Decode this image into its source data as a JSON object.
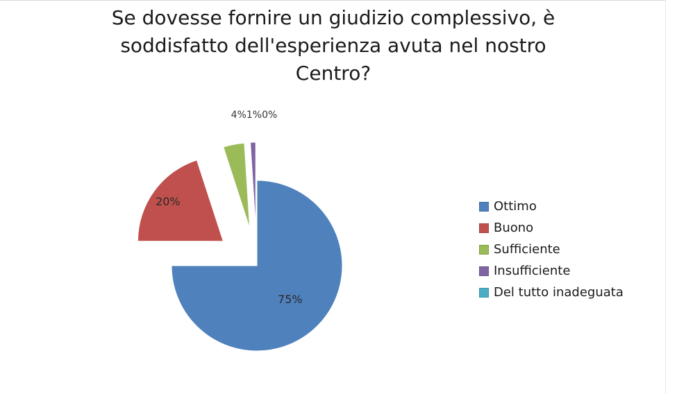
{
  "chart_data": {
    "type": "pie",
    "title": "Se dovesse fornire un giudizio complessivo, è soddisfatto dell'esperienza avuta nel nostro Centro?",
    "title_lines": [
      "Se dovesse fornire un giudizio complessivo, è",
      "soddisfatto dell'esperienza avuta nel nostro",
      "Centro?"
    ],
    "categories": [
      "Ottimo",
      "Buono",
      "Sufficiente",
      "Insufficiente",
      "Del tutto inadeguata"
    ],
    "values": [
      75,
      20,
      4,
      1,
      0
    ],
    "data_labels": [
      "75%",
      "20%",
      "4%",
      "1%",
      "0%"
    ],
    "outside_label_text": "4%1%0%",
    "colors": [
      "#4F81BD",
      "#C0504D",
      "#9BBB59",
      "#8064A2",
      "#4BACC6"
    ],
    "exploded": true,
    "legend_position": "right"
  }
}
